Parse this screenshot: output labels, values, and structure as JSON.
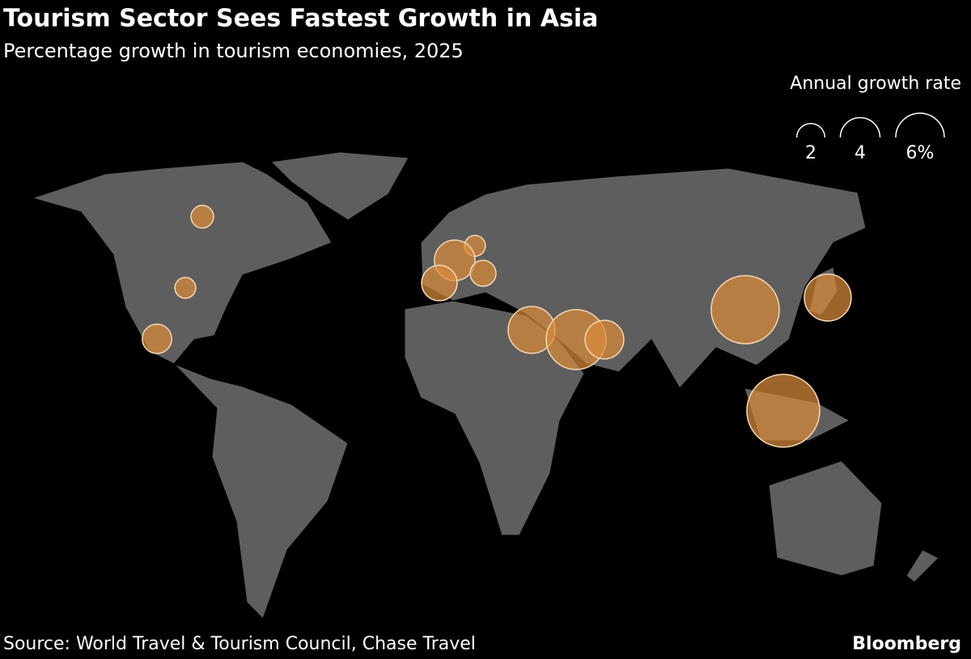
{
  "chart_data": {
    "type": "bubble_map",
    "title": "Tourism Sector Sees Fastest Growth in Asia",
    "subtitle": "Percentage growth in tourism economies, 2025",
    "legend": {
      "title": "Annual growth rate",
      "sizes": [
        2,
        4,
        {
          "value": 6,
          "label": "6%"
        }
      ]
    },
    "values": [
      1.3,
      1.1,
      2.2,
      1.1,
      4.2,
      3.2,
      1.7,
      5.6,
      9.1,
      3.8,
      11.8,
      5.6,
      13.5
    ],
    "color": "#d98a3a",
    "source": "Source: World Travel & Tourism Council, Chase Travel",
    "brand": "Bloomberg"
  }
}
